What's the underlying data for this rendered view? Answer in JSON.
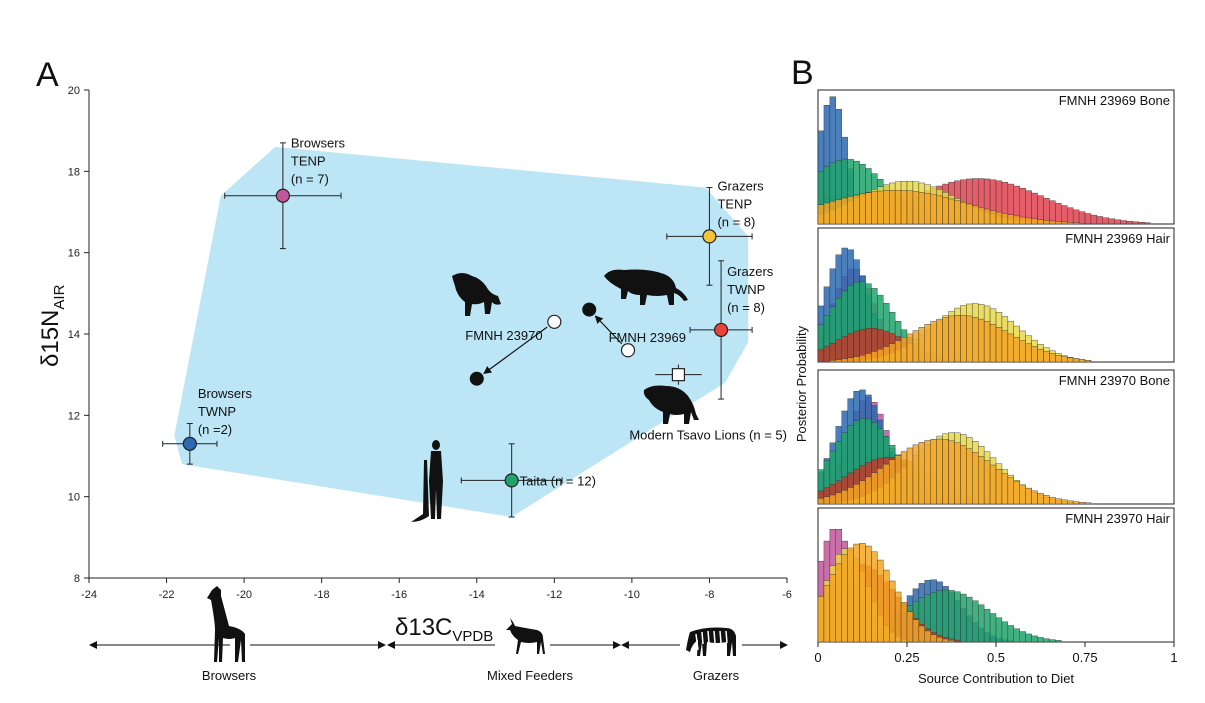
{
  "panel_a_letter": "A",
  "panel_b_letter": "B",
  "chart_data": [
    {
      "type": "scatter",
      "title": "",
      "xlabel_main": "δ13C",
      "xlabel_sub": "VPDB",
      "ylabel_main": "δ15N",
      "ylabel_sub": "AIR",
      "xlim": [
        -24,
        -6
      ],
      "ylim": [
        8,
        20
      ],
      "x_ticks": [
        "-24",
        "-22",
        "-20",
        "-18",
        "-16",
        "-14",
        "-12",
        "-10",
        "-8",
        "-6"
      ],
      "y_ticks": [
        "8",
        "10",
        "12",
        "14",
        "16",
        "18",
        "20"
      ],
      "mixing_polygon": {
        "color": "#bce6f6",
        "vertices": [
          [
            -20.6,
            17.4
          ],
          [
            -19.2,
            18.6
          ],
          [
            -8.1,
            17.6
          ],
          [
            -7.0,
            16.4
          ],
          [
            -7.0,
            13.8
          ],
          [
            -7.6,
            12.8
          ],
          [
            -13.1,
            9.5
          ],
          [
            -21.6,
            10.8
          ],
          [
            -21.8,
            11.5
          ]
        ]
      },
      "sources": [
        {
          "name": "Browsers TENP",
          "lines": [
            "Browsers",
            "TENP",
            "(n = 7)"
          ],
          "x": -19.0,
          "y": 17.4,
          "xerr": 1.5,
          "yerr": 1.3,
          "color": "#c2569b"
        },
        {
          "name": "Grazers TENP",
          "lines": [
            "Grazers",
            "TENP",
            "(n = 8)"
          ],
          "x": -8.0,
          "y": 16.4,
          "xerr": 1.1,
          "yerr": 1.2,
          "color": "#f3c43c"
        },
        {
          "name": "Grazers TWNP",
          "lines": [
            "Grazers",
            "TWNP",
            "(n = 8)"
          ],
          "x": -7.7,
          "y": 14.1,
          "xerr": 0.8,
          "yerr": 1.7,
          "color": "#e8443a"
        },
        {
          "name": "Browsers TWNP",
          "lines": [
            "Browsers",
            "TWNP",
            "(n =2)"
          ],
          "x": -21.4,
          "y": 11.3,
          "xerr": 0.7,
          "yerr": 0.5,
          "color": "#2c69b0"
        },
        {
          "name": "Taita",
          "lines": [
            "Taita (n = 12)"
          ],
          "x": -13.1,
          "y": 10.4,
          "xerr": 1.3,
          "yerr": 0.9,
          "color": "#21a36b"
        }
      ],
      "lions": [
        {
          "name": "FMNH 23970",
          "hair": [
            -12.0,
            14.3
          ],
          "bone": [
            -14.0,
            12.9
          ]
        },
        {
          "name": "FMNH 23969",
          "hair": [
            -10.1,
            13.6
          ],
          "bone": [
            -11.1,
            14.6
          ]
        }
      ],
      "modern_lions": {
        "label": "Modern Tsavo Lions (n = 5)",
        "x": -8.8,
        "y": 13.0,
        "xerr": 0.6,
        "yerr": 0.25
      },
      "diet_axis": {
        "browsers": "Browsers",
        "mixed": "Mixed Feeders",
        "grazers": "Grazers"
      }
    },
    {
      "type": "histogram",
      "xlabel": "Source Contribution to Diet",
      "ylabel": "Posterior Probability",
      "x_ticks": [
        "0",
        "0.25",
        "0.5",
        "0.75",
        "1"
      ],
      "xlim": [
        0,
        1
      ],
      "series_colors": {
        "browsers_tenp": "#c2569b",
        "browsers_twnp": "#2c69b0",
        "grazers_twnp": "#c0392b",
        "grazers_tenp": "#e8d84a",
        "taita": "#21a36b",
        "grazers_tenp2": "#f3a524"
      },
      "panels": [
        {
          "title": "FMNH 23969 Bone",
          "dists": [
            {
              "color": "#c2569b",
              "peak": 0.03,
              "width": 0.04,
              "height": 0.22
            },
            {
              "color": "#2c69b0",
              "peak": 0.04,
              "width": 0.04,
              "height": 0.98
            },
            {
              "color": "#21a36b",
              "peak": 0.08,
              "width": 0.11,
              "height": 0.5
            },
            {
              "color": "#e0414e",
              "peak": 0.45,
              "width": 0.18,
              "height": 0.35
            },
            {
              "color": "#e8d84a",
              "peak": 0.25,
              "width": 0.14,
              "height": 0.33
            },
            {
              "color": "#f3a524",
              "peak": 0.22,
              "width": 0.2,
              "height": 0.26
            }
          ]
        },
        {
          "title": "FMNH 23969 Hair",
          "dists": [
            {
              "color": "#c2569b",
              "peak": 0.1,
              "width": 0.06,
              "height": 0.72
            },
            {
              "color": "#2c69b0",
              "peak": 0.08,
              "width": 0.06,
              "height": 0.88
            },
            {
              "color": "#21a36b",
              "peak": 0.12,
              "width": 0.09,
              "height": 0.62
            },
            {
              "color": "#c0392b",
              "peak": 0.15,
              "width": 0.1,
              "height": 0.26
            },
            {
              "color": "#e8d84a",
              "peak": 0.44,
              "width": 0.12,
              "height": 0.45
            },
            {
              "color": "#f3a524",
              "peak": 0.4,
              "width": 0.14,
              "height": 0.36
            }
          ]
        },
        {
          "title": "FMNH 23970 Bone",
          "dists": [
            {
              "color": "#c2569b",
              "peak": 0.14,
              "width": 0.06,
              "height": 0.82
            },
            {
              "color": "#2c69b0",
              "peak": 0.12,
              "width": 0.07,
              "height": 0.88
            },
            {
              "color": "#21a36b",
              "peak": 0.13,
              "width": 0.09,
              "height": 0.66
            },
            {
              "color": "#c0392b",
              "peak": 0.2,
              "width": 0.12,
              "height": 0.36
            },
            {
              "color": "#e8d84a",
              "peak": 0.38,
              "width": 0.12,
              "height": 0.55
            },
            {
              "color": "#f3a524",
              "peak": 0.34,
              "width": 0.15,
              "height": 0.5
            }
          ]
        },
        {
          "title": "FMNH 23970 Hair",
          "dists": [
            {
              "color": "#c2569b",
              "peak": 0.05,
              "width": 0.05,
              "height": 0.88
            },
            {
              "color": "#2c69b0",
              "peak": 0.32,
              "width": 0.08,
              "height": 0.48
            },
            {
              "color": "#21a36b",
              "peak": 0.36,
              "width": 0.12,
              "height": 0.4
            },
            {
              "color": "#c0392b",
              "peak": 0.12,
              "width": 0.1,
              "height": 0.6
            },
            {
              "color": "#e8d84a",
              "peak": 0.08,
              "width": 0.06,
              "height": 0.72
            },
            {
              "color": "#f3a524",
              "peak": 0.12,
              "width": 0.09,
              "height": 0.76
            }
          ]
        }
      ]
    }
  ]
}
